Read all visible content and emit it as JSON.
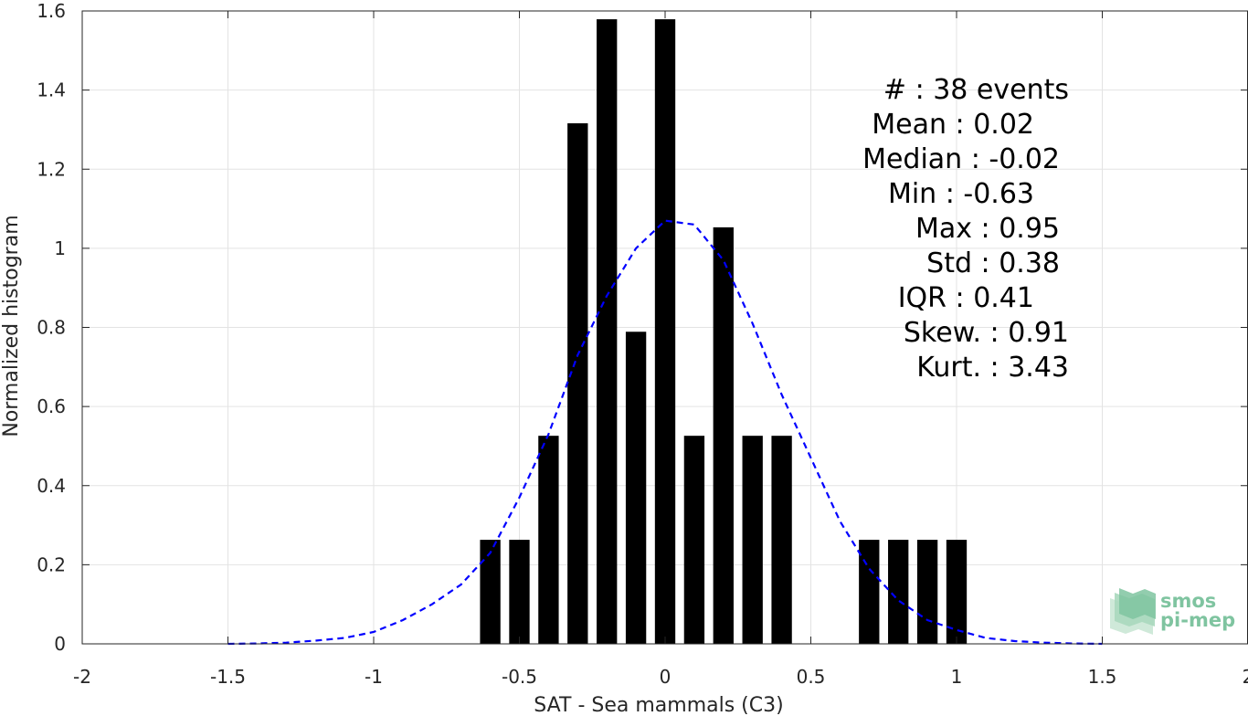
{
  "chart_data": {
    "type": "bar",
    "title": "",
    "xlabel": "SAT - Sea mammals (C3)",
    "ylabel": "Normalized histogram",
    "xlim": [
      -2,
      2
    ],
    "ylim": [
      0,
      1.6
    ],
    "grid": true,
    "x_ticks": [
      -2,
      -1.5,
      -1,
      -0.5,
      0,
      0.5,
      1,
      1.5,
      2
    ],
    "x_tick_labels": [
      "-2",
      "-1.5",
      "-1",
      "-0.5",
      "0",
      "0.5",
      "1",
      "1.5",
      "2"
    ],
    "y_ticks": [
      0,
      0.2,
      0.4,
      0.6,
      0.8,
      1,
      1.2,
      1.4,
      1.6
    ],
    "y_tick_labels": [
      "0",
      "0.2",
      "0.4",
      "0.6",
      "0.8",
      "1",
      "1.2",
      "1.4",
      "1.6"
    ],
    "bar_width": 0.07,
    "bars": {
      "x": [
        -0.6,
        -0.5,
        -0.4,
        -0.3,
        -0.2,
        -0.1,
        0.0,
        0.1,
        0.2,
        0.3,
        0.4,
        0.7,
        0.8,
        0.9,
        1.0
      ],
      "values": [
        0.263,
        0.263,
        0.526,
        1.316,
        1.579,
        0.789,
        1.579,
        0.526,
        1.053,
        0.526,
        0.526,
        0.263,
        0.263,
        0.263,
        0.263
      ],
      "color": "#000000"
    },
    "fit_curve": {
      "style": "dashed",
      "color": "#0000ff",
      "x": [
        -1.5,
        -1.4,
        -1.3,
        -1.2,
        -1.1,
        -1.0,
        -0.9,
        -0.8,
        -0.7,
        -0.6,
        -0.5,
        -0.4,
        -0.3,
        -0.2,
        -0.1,
        0.0,
        0.1,
        0.2,
        0.3,
        0.4,
        0.5,
        0.6,
        0.7,
        0.8,
        0.9,
        1.0,
        1.1,
        1.2,
        1.3,
        1.4,
        1.5
      ],
      "y": [
        0.0,
        0.001,
        0.003,
        0.008,
        0.015,
        0.03,
        0.06,
        0.1,
        0.15,
        0.23,
        0.37,
        0.53,
        0.73,
        0.88,
        1.0,
        1.07,
        1.06,
        0.97,
        0.81,
        0.63,
        0.47,
        0.31,
        0.19,
        0.11,
        0.06,
        0.035,
        0.015,
        0.007,
        0.003,
        0.001,
        0.0
      ]
    },
    "annotations": [
      "#  : 38 events",
      "Mean : 0.02",
      "Median : -0.02",
      "Min : -0.63",
      "Max : 0.95",
      "Std : 0.38",
      "IQR : 0.41",
      "Skew. : 0.91",
      "Kurt. : 3.43"
    ]
  },
  "logo": {
    "line1": "smos",
    "line2": "pi-mep",
    "color": "#7fc4a0"
  }
}
